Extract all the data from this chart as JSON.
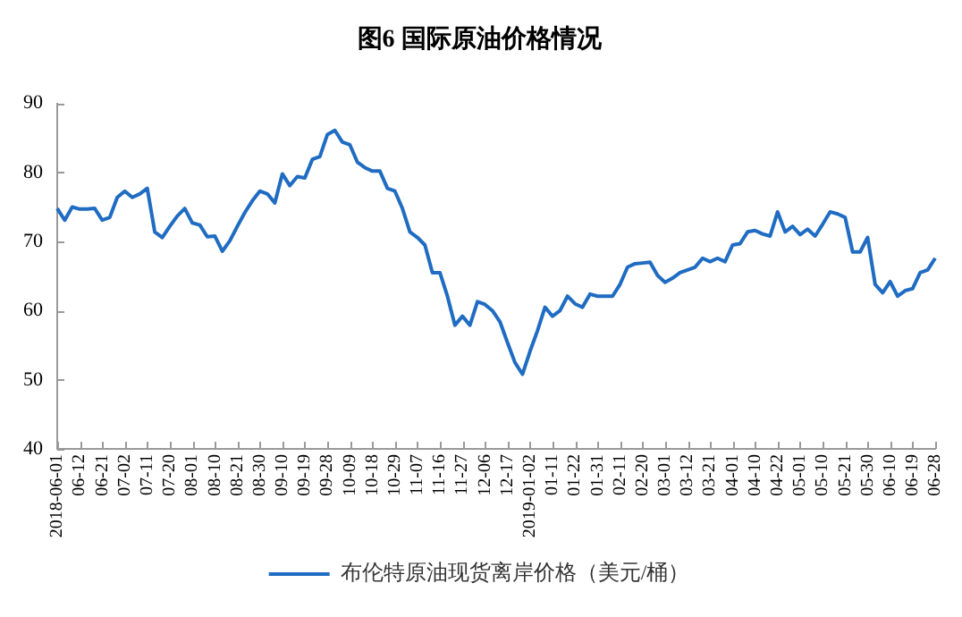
{
  "chart_data": {
    "type": "line",
    "title": "图6 国际原油价格情况",
    "categories": [
      "2018-06-01",
      null,
      null,
      "06-12",
      null,
      null,
      "06-21",
      null,
      null,
      "07-02",
      null,
      null,
      "07-11",
      null,
      null,
      "07-20",
      null,
      null,
      "08-01",
      null,
      null,
      "08-10",
      null,
      null,
      "08-21",
      null,
      null,
      "08-30",
      null,
      null,
      "09-10",
      null,
      null,
      "09-19",
      null,
      null,
      "09-28",
      null,
      null,
      "10-09",
      null,
      null,
      "10-18",
      null,
      null,
      "10-29",
      null,
      null,
      "11-07",
      null,
      null,
      "11-16",
      null,
      null,
      "11-27",
      null,
      null,
      "12-06",
      null,
      null,
      "12-17",
      null,
      null,
      "2019-01-02",
      null,
      null,
      "01-11",
      null,
      null,
      "01-22",
      null,
      null,
      "01-31",
      null,
      null,
      "02-11",
      null,
      null,
      "02-20",
      null,
      null,
      "03-01",
      null,
      null,
      "03-12",
      null,
      null,
      "03-21",
      null,
      null,
      "04-01",
      null,
      null,
      "04-10",
      null,
      null,
      "04-22",
      null,
      null,
      "05-01",
      null,
      null,
      "05-10",
      null,
      null,
      "05-21",
      null,
      null,
      "05-30",
      null,
      null,
      "06-10",
      null,
      null,
      "06-19",
      null,
      null,
      "06-28"
    ],
    "series": [
      {
        "name": "布伦特原油现货离岸价格（美元/桶）",
        "color": "#1f6cc2",
        "values": [
          74.8,
          73.1,
          75.0,
          74.7,
          74.7,
          74.8,
          73.1,
          73.5,
          76.4,
          77.3,
          76.4,
          76.9,
          77.7,
          71.4,
          70.6,
          72.2,
          73.7,
          74.8,
          72.7,
          72.4,
          70.7,
          70.8,
          68.6,
          70.1,
          72.2,
          74.2,
          75.9,
          77.3,
          76.9,
          75.6,
          79.8,
          78.1,
          79.4,
          79.2,
          81.9,
          82.3,
          85.5,
          86.1,
          84.4,
          84.0,
          81.5,
          80.7,
          80.2,
          80.2,
          77.7,
          77.3,
          74.8,
          71.4,
          70.6,
          69.5,
          65.5,
          65.5,
          62.1,
          57.9,
          59.2,
          57.9,
          61.3,
          60.9,
          60.0,
          58.4,
          55.4,
          52.5,
          50.8,
          54.1,
          57.1,
          60.5,
          59.2,
          60.0,
          62.1,
          61.0,
          60.5,
          62.4,
          62.1,
          62.1,
          62.1,
          63.8,
          66.3,
          66.8,
          66.9,
          67.0,
          65.1,
          64.1,
          64.7,
          65.5,
          65.9,
          66.3,
          67.6,
          67.1,
          67.6,
          67.1,
          69.5,
          69.7,
          71.4,
          71.6,
          71.1,
          70.8,
          74.3,
          71.4,
          72.2,
          71.0,
          71.8,
          70.8,
          72.5,
          74.3,
          74.0,
          73.5,
          68.5,
          68.5,
          70.6,
          63.8,
          62.6,
          64.2,
          62.1,
          62.9,
          63.2,
          65.5,
          65.9,
          67.6
        ]
      }
    ],
    "ylim": [
      40,
      90
    ],
    "yticks": [
      40,
      50,
      60,
      70,
      80,
      90
    ],
    "grid": false,
    "legend": "bottom"
  }
}
